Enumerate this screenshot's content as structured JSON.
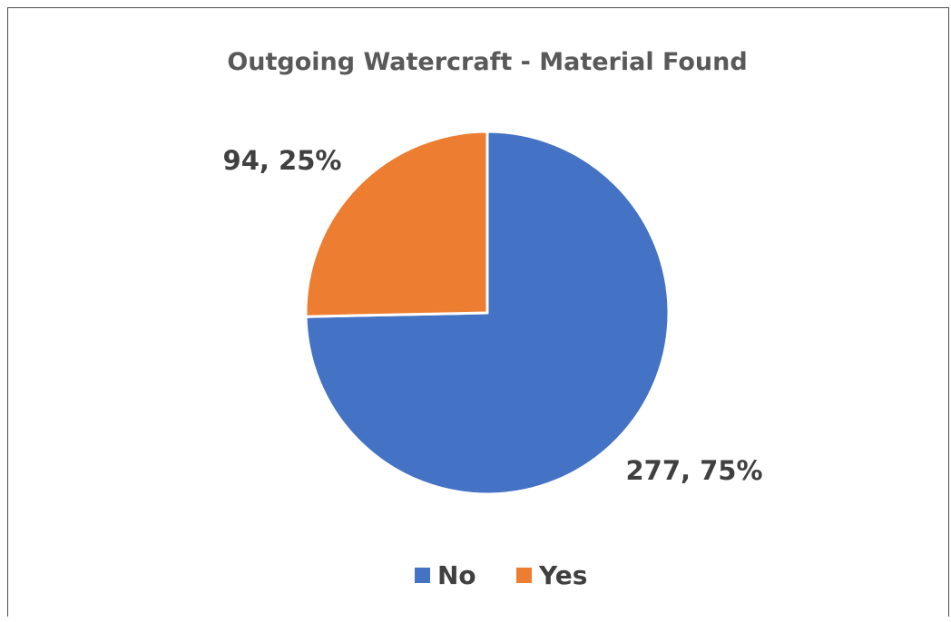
{
  "chart_data": {
    "type": "pie",
    "title": "Outgoing Watercraft - Material Found",
    "slices": [
      {
        "label": "No",
        "value": 277,
        "percent": 75,
        "data_label": "277, 75%",
        "color": "#4472C4"
      },
      {
        "label": "Yes",
        "value": 94,
        "percent": 25,
        "data_label": "94, 25%",
        "color": "#ED7D31"
      }
    ],
    "legend": {
      "position": "bottom",
      "entries": [
        "No",
        "Yes"
      ]
    },
    "colors": {
      "title": "#595959",
      "data_label": "#404040",
      "legend_text": "#404040",
      "slice_border": "#ffffff"
    }
  }
}
